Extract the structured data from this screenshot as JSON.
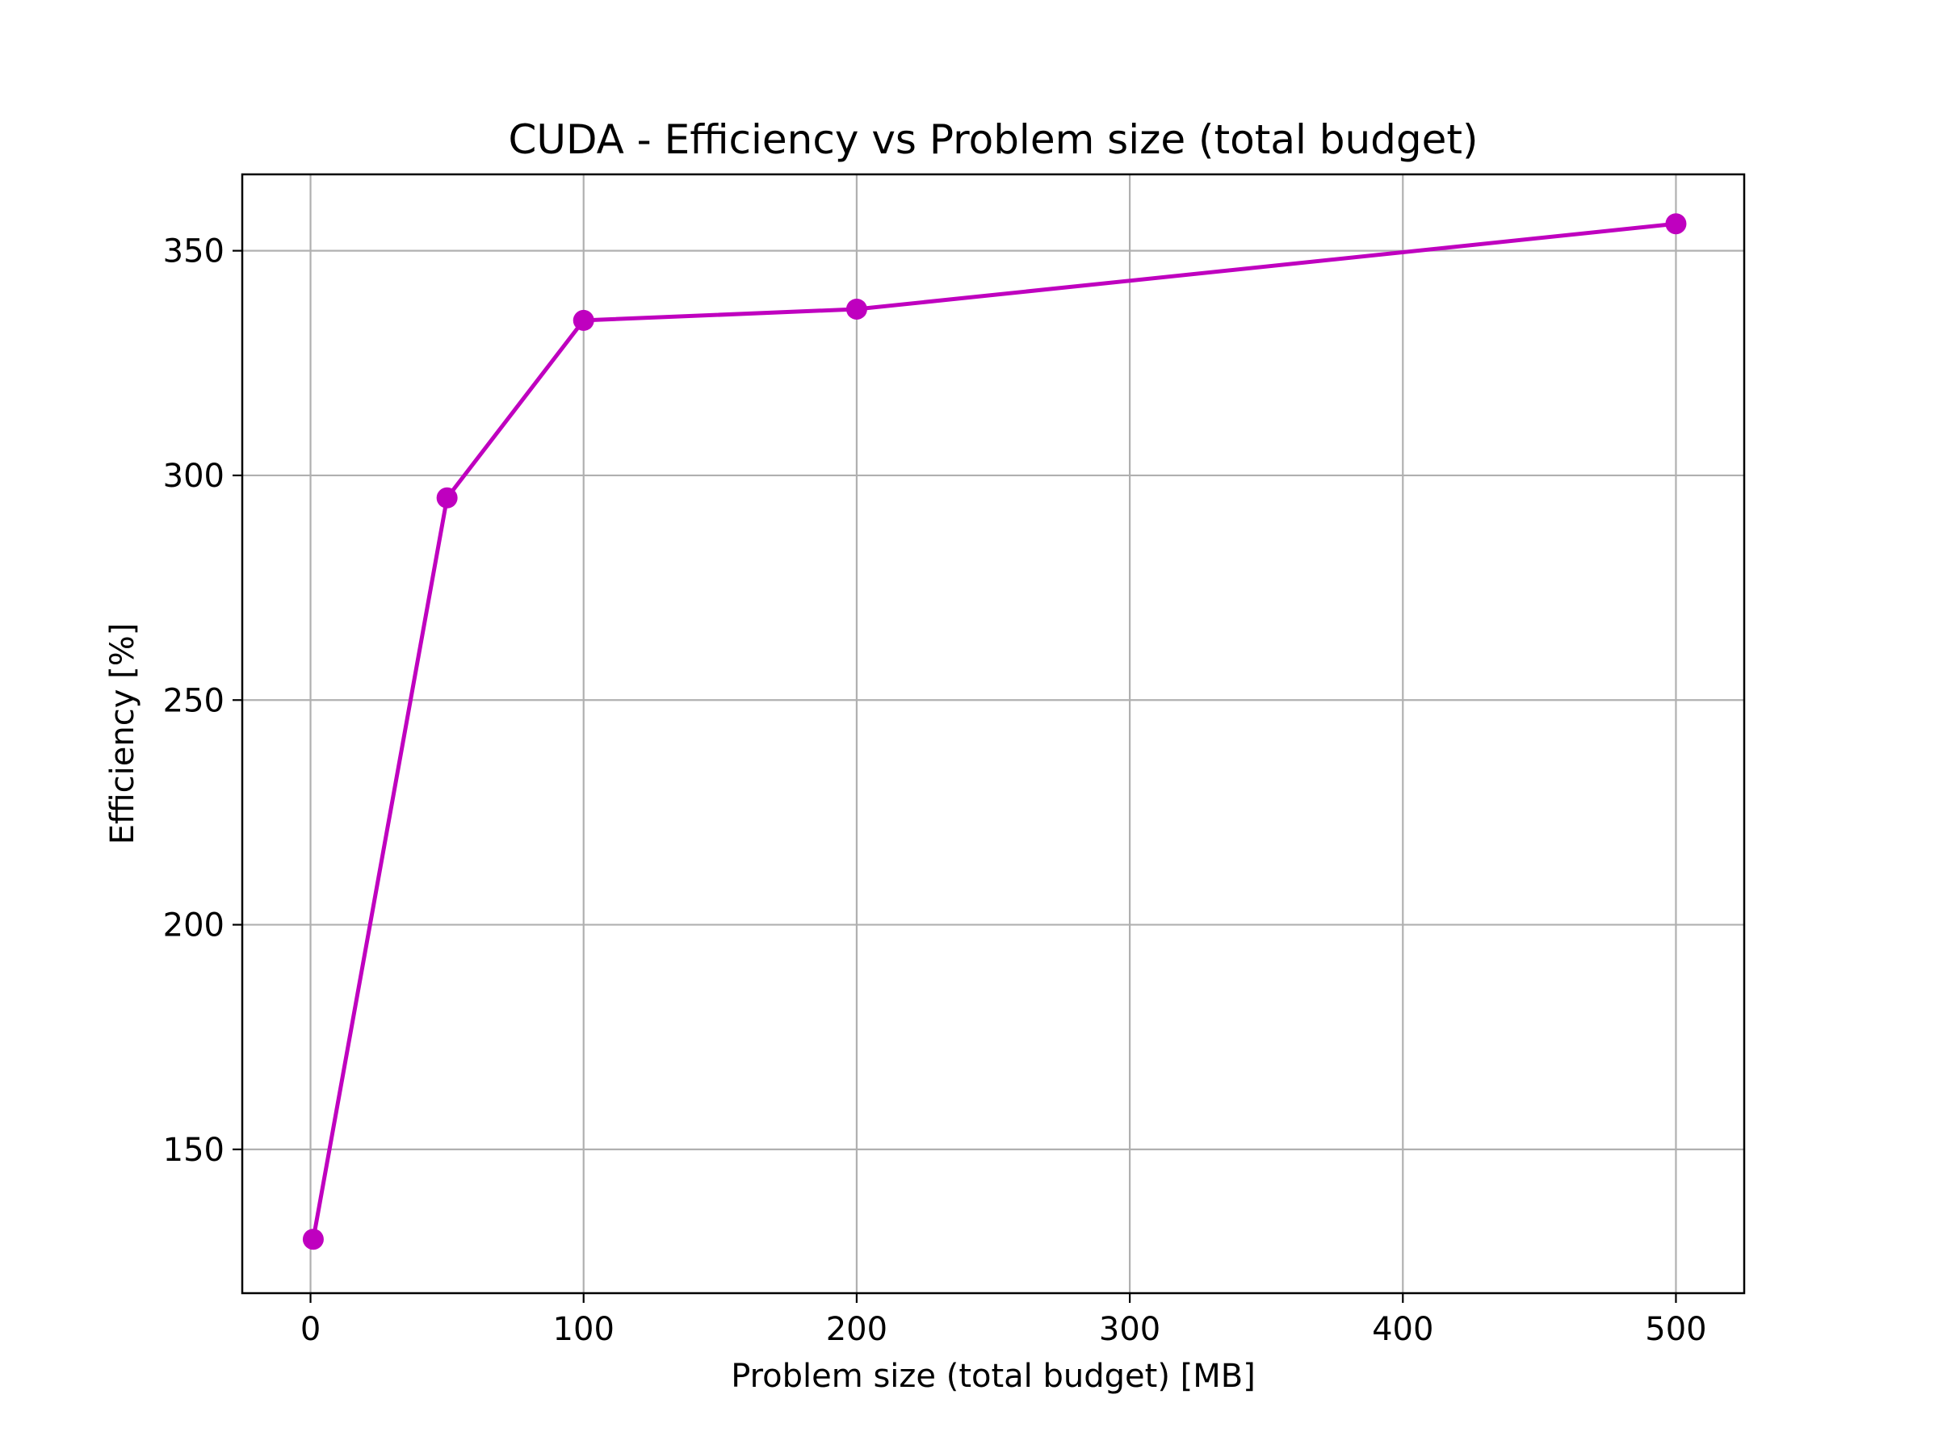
{
  "chart_data": {
    "type": "line",
    "title": "CUDA - Efficiency vs Problem size (total budget)",
    "xlabel": "Problem size (total budget) [MB]",
    "ylabel": "Efficiency [%]",
    "xlim": [
      -25,
      525
    ],
    "ylim": [
      118,
      367
    ],
    "x_ticks": [
      0,
      100,
      200,
      300,
      400,
      500
    ],
    "y_ticks": [
      150,
      200,
      250,
      300,
      350
    ],
    "grid": true,
    "legend": "none",
    "series": [
      {
        "x": [
          1,
          50,
          100,
          200,
          500
        ],
        "y": [
          130,
          295,
          334.5,
          337,
          356
        ],
        "color": "#bf00bf",
        "marker": "circle"
      }
    ]
  },
  "colors": {
    "grid": "#b0b0b0",
    "axes": "#000000",
    "background": "#ffffff"
  }
}
